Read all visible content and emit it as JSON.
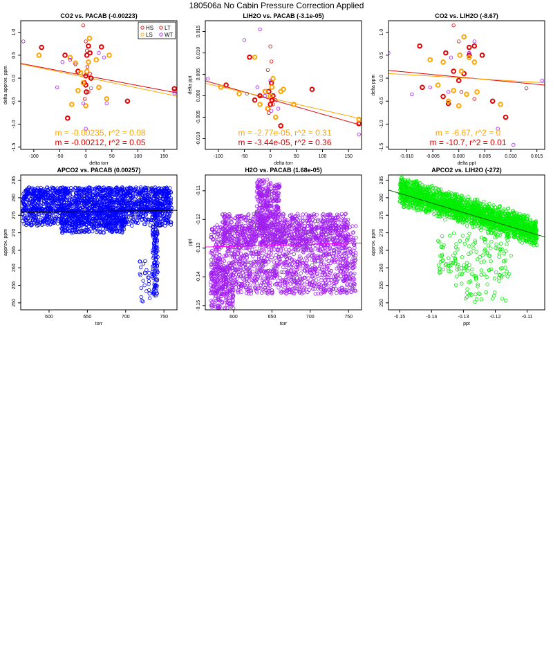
{
  "page": {
    "title": "180506a   No Cabin Pressure Correction Applied"
  },
  "colors": {
    "HS": "#e00000",
    "LT": "#e00000",
    "LS": "#ffa500",
    "WT": "#a020f0",
    "fitLS": "#ffa500",
    "fitHS": "#e00000",
    "blue": "#0000ff",
    "purple": "#a020f0",
    "green": "#00ee00"
  },
  "chart_data": [
    {
      "type": "scatter",
      "title": "CO2 vs. PACAB (-0.00223)",
      "xlabel": "delta torr",
      "ylabel": "delta approx. ppm",
      "xlim": [
        -125,
        175
      ],
      "ylim": [
        -1.55,
        1.25
      ],
      "xticks": [
        -100,
        -50,
        0,
        50,
        100,
        150
      ],
      "yticks": [
        -1.5,
        -1.0,
        -0.5,
        0.0,
        0.5,
        1.0
      ],
      "xtick_labels": [
        "-100",
        "-50",
        "0",
        "50",
        "100",
        "150"
      ],
      "ytick_labels": [
        "-1.5",
        "-1.0",
        "-0.5",
        "0.0",
        "0.5",
        "1.0"
      ],
      "legend": {
        "position": "top-right",
        "entries": [
          "HS",
          "LT",
          "LS",
          "WT"
        ]
      },
      "annotations": [
        {
          "text": "m = -0.00235, r^2 = 0.08",
          "color": "#ffa500"
        },
        {
          "text": "m = -0.00212, r^2 = 0.05",
          "color": "#e00000"
        }
      ],
      "fits": [
        {
          "color": "#e00000",
          "x": [
            -125,
            175
          ],
          "y": [
            0.32,
            -0.32
          ]
        },
        {
          "color": "#ffa500",
          "x": [
            -125,
            175
          ],
          "y": [
            0.31,
            -0.39
          ]
        }
      ],
      "series": [
        {
          "name": "HS",
          "color": "#e00000",
          "thick": true,
          "x": [
            -85,
            -40,
            -35,
            -15,
            0,
            2,
            5,
            8,
            10,
            30,
            80,
            170,
            1,
            0,
            -3
          ],
          "y": [
            0.67,
            0.5,
            -0.87,
            0.15,
            -0.15,
            0.5,
            0.7,
            0.55,
            0.0,
            0.68,
            -0.5,
            -0.23,
            -0.3,
            0.05,
            -0.1
          ]
        },
        {
          "name": "LS",
          "color": "#ffa500",
          "thick": true,
          "x": [
            -90,
            -30,
            -27,
            -20,
            -15,
            -10,
            0,
            5,
            7,
            20,
            25,
            40,
            45,
            -5,
            2
          ],
          "y": [
            0.5,
            0.45,
            -0.57,
            0.33,
            -0.27,
            0.12,
            -0.6,
            0.35,
            0.87,
            0.4,
            -0.2,
            -0.45,
            0.5,
            -0.1,
            0.15
          ]
        },
        {
          "name": "LT",
          "color": "#e00000",
          "thick": false,
          "x": [
            -5,
            0,
            2,
            5,
            8,
            170,
            -2,
            3
          ],
          "y": [
            1.15,
            0.8,
            0.6,
            -0.3,
            0.1,
            -0.28,
            -0.45,
            0.25
          ]
        },
        {
          "name": "WT",
          "color": "#a020f0",
          "thick": false,
          "x": [
            -120,
            -55,
            -45,
            -30,
            -20,
            -5,
            10,
            25,
            35,
            40,
            170,
            0
          ],
          "y": [
            0.8,
            -0.2,
            0.35,
            0.4,
            0.3,
            -0.55,
            -0.22,
            0.55,
            0.45,
            -0.55,
            -0.33,
            -1.1
          ]
        }
      ]
    },
    {
      "type": "scatter",
      "title": "LIH2O vs. PACAB (-3.1e-05)",
      "xlabel": "delta torr",
      "ylabel": "delta ppt",
      "xlim": [
        -125,
        175
      ],
      "ylim": [
        -0.0125,
        0.0175
      ],
      "xticks": [
        -100,
        -50,
        0,
        50,
        100,
        150
      ],
      "yticks": [
        -0.01,
        -0.005,
        0.0,
        0.005,
        0.01,
        0.015
      ],
      "xtick_labels": [
        "-100",
        "-50",
        "0",
        "50",
        "100",
        "150"
      ],
      "ytick_labels": [
        "-0.010",
        "-0.005",
        "0.000",
        "0.005",
        "0.010",
        "0.015"
      ],
      "annotations": [
        {
          "text": "m = -2.77e-05, r^2 = 0.31",
          "color": "#ffa500"
        },
        {
          "text": "m = -3.44e-05, r^2 = 0.36",
          "color": "#e00000"
        }
      ],
      "fits": [
        {
          "color": "#e00000",
          "x": [
            -125,
            175
          ],
          "y": [
            0.0035,
            -0.0069
          ]
        },
        {
          "color": "#ffa500",
          "x": [
            -125,
            175
          ],
          "y": [
            0.0029,
            -0.0054
          ]
        }
      ],
      "series": [
        {
          "name": "HS",
          "color": "#e00000",
          "thick": true,
          "x": [
            -85,
            -40,
            -30,
            -20,
            -10,
            -5,
            0,
            2,
            5,
            20,
            80,
            170,
            -3,
            3
          ],
          "y": [
            0.0025,
            0.009,
            -0.001,
            0.0,
            0.001,
            -0.003,
            -0.002,
            0.003,
            0.0,
            -0.007,
            0.0015,
            -0.0065,
            0.001,
            -0.001
          ]
        },
        {
          "name": "LS",
          "color": "#ffa500",
          "thick": true,
          "x": [
            -95,
            -60,
            -30,
            -20,
            -10,
            0,
            5,
            10,
            20,
            25,
            45,
            170,
            -5,
            3
          ],
          "y": [
            0.002,
            0.0005,
            0.009,
            -0.002,
            0.001,
            0.0,
            0.004,
            -0.005,
            0.001,
            0.0015,
            -0.002,
            -0.0055,
            -0.003,
            0.002
          ]
        },
        {
          "name": "LT",
          "color": "#e00000",
          "thick": false,
          "x": [
            -5,
            0,
            2,
            5,
            10,
            170,
            -3
          ],
          "y": [
            0.006,
            0.0115,
            0.008,
            -0.002,
            -0.001,
            -0.0065,
            -0.004
          ]
        },
        {
          "name": "WT",
          "color": "#a020f0",
          "thick": false,
          "x": [
            -120,
            -50,
            -45,
            -25,
            -20,
            -10,
            0,
            15,
            170,
            2
          ],
          "y": [
            0.004,
            0.013,
            0.0005,
            0.002,
            0.0155,
            0.0,
            0.0035,
            -0.003,
            -0.009,
            -0.0035
          ]
        }
      ]
    },
    {
      "type": "scatter",
      "title": "CO2 vs. LIH2O (-8.67)",
      "xlabel": "delta ppt",
      "ylabel": "delta ppm",
      "xlim": [
        -0.0135,
        0.0165
      ],
      "ylim": [
        -1.55,
        1.25
      ],
      "xticks": [
        -0.01,
        -0.005,
        0.0,
        0.005,
        0.01,
        0.015
      ],
      "yticks": [
        -1.5,
        -1.0,
        -0.5,
        0.0,
        0.5,
        1.0
      ],
      "xtick_labels": [
        "-0.010",
        "-0.005",
        "0.000",
        "0.005",
        "0.010",
        "0.015"
      ],
      "ytick_labels": [
        "-1.5",
        "-1.0",
        "-0.5",
        "0.0",
        "0.5",
        "1.0"
      ],
      "annotations": [
        {
          "text": "m = -6.67, r^2 = 0",
          "color": "#ffa500"
        },
        {
          "text": "m = -10.7, r^2 = 0.01",
          "color": "#e00000"
        }
      ],
      "fits": [
        {
          "color": "#e00000",
          "x": [
            -0.0135,
            0.0165
          ],
          "y": [
            0.17,
            -0.15
          ]
        },
        {
          "color": "#ffa500",
          "x": [
            -0.0135,
            0.0165
          ],
          "y": [
            0.1,
            -0.1
          ]
        }
      ],
      "series": [
        {
          "name": "HS",
          "color": "#e00000",
          "thick": true,
          "x": [
            -0.0075,
            -0.007,
            -0.0025,
            -0.002,
            -0.001,
            0.0,
            0.001,
            0.002,
            0.003,
            0.0045,
            0.0065,
            0.009,
            0.002,
            -0.003
          ],
          "y": [
            0.7,
            -0.2,
            0.55,
            -0.55,
            0.15,
            -0.05,
            0.1,
            0.5,
            0.7,
            0.5,
            -0.5,
            -0.85,
            0.67,
            -0.4
          ]
        },
        {
          "name": "LS",
          "color": "#ffa500",
          "thick": true,
          "x": [
            -0.0055,
            -0.004,
            -0.003,
            -0.002,
            0.0,
            0.0005,
            0.001,
            0.0015,
            0.002,
            0.003,
            0.0035,
            0.008,
            -0.001,
            0.0002
          ],
          "y": [
            0.4,
            -0.15,
            0.35,
            -0.5,
            -0.6,
            0.15,
            0.9,
            -0.35,
            0.45,
            0.35,
            -0.3,
            -0.57,
            -0.27,
            0.5
          ]
        },
        {
          "name": "LT",
          "color": "#e00000",
          "thick": false,
          "x": [
            -0.001,
            0.0,
            0.002,
            0.003,
            0.013,
            0.0005
          ],
          "y": [
            1.15,
            0.8,
            0.55,
            -0.45,
            -0.22,
            -0.3
          ]
        },
        {
          "name": "WT",
          "color": "#a020f0",
          "thick": false,
          "x": [
            -0.0135,
            -0.009,
            -0.0055,
            -0.0015,
            0.002,
            0.003,
            0.0105,
            0.016,
            0.0075,
            -0.002
          ],
          "y": [
            0.55,
            -0.35,
            -0.2,
            0.45,
            0.55,
            0.8,
            -1.45,
            -0.05,
            -1.1,
            -0.3
          ]
        }
      ]
    },
    {
      "type": "scatter",
      "title": "APCO2 vs. PACAB (0.00257)",
      "xlabel": "torr",
      "ylabel": "approx. ppm",
      "xlim": [
        563,
        767
      ],
      "ylim": [
        248,
        286.5
      ],
      "xticks": [
        600,
        650,
        700,
        750
      ],
      "yticks": [
        250,
        255,
        260,
        265,
        270,
        275,
        280,
        285
      ],
      "xtick_labels": [
        "600",
        "650",
        "700",
        "750"
      ],
      "ytick_labels": [
        "250",
        "255",
        "260",
        "265",
        "270",
        "275",
        "280",
        "285"
      ],
      "color": "#0000ff",
      "fits": [
        {
          "color": "#000000",
          "x": [
            563,
            767
          ],
          "y": [
            275.9,
            276.4
          ]
        }
      ],
      "clouds": [
        {
          "x": [
            565,
            760
          ],
          "y": [
            276,
            283
          ],
          "n": 1400
        },
        {
          "x": [
            565,
            760
          ],
          "y": [
            272,
            277
          ],
          "n": 600
        },
        {
          "x": [
            615,
            700
          ],
          "y": [
            270,
            276
          ],
          "n": 350
        },
        {
          "x": [
            735,
            742
          ],
          "y": [
            252,
            276
          ],
          "n": 150
        },
        {
          "x": [
            718,
            732
          ],
          "y": [
            250,
            262
          ],
          "n": 25
        }
      ]
    },
    {
      "type": "scatter",
      "title": "H2O vs. PACAB (1.68e-05)",
      "xlabel": "torr",
      "ylabel": "ppt",
      "xlim": [
        563,
        767
      ],
      "ylim": [
        -0.1515,
        -0.1045
      ],
      "xticks": [
        600,
        650,
        700,
        750
      ],
      "yticks": [
        -0.15,
        -0.14,
        -0.13,
        -0.12,
        -0.11
      ],
      "xtick_labels": [
        "600",
        "650",
        "700",
        "750"
      ],
      "ytick_labels": [
        "-0.15",
        "-0.14",
        "-0.13",
        "-0.12",
        "-0.11"
      ],
      "color": "#a020f0",
      "fits": [
        {
          "color": "#ff00ff",
          "x": [
            563,
            767
          ],
          "y": [
            -0.1296,
            -0.1282
          ]
        }
      ],
      "clouds": [
        {
          "x": [
            570,
            760
          ],
          "y": [
            -0.146,
            -0.122
          ],
          "n": 1500
        },
        {
          "x": [
            585,
            750
          ],
          "y": [
            -0.129,
            -0.118
          ],
          "n": 700
        },
        {
          "x": [
            630,
            660
          ],
          "y": [
            -0.124,
            -0.106
          ],
          "n": 300
        },
        {
          "x": [
            570,
            600
          ],
          "y": [
            -0.151,
            -0.136
          ],
          "n": 200
        }
      ]
    },
    {
      "type": "scatter",
      "title": "APCO2 vs. LIH2O (-272)",
      "xlabel": "ppt",
      "ylabel": "approx. ppm",
      "xlim": [
        -0.1535,
        -0.1045
      ],
      "ylim": [
        248,
        286.5
      ],
      "xticks": [
        -0.15,
        -0.14,
        -0.13,
        -0.12,
        -0.11
      ],
      "yticks": [
        250,
        255,
        260,
        265,
        270,
        275,
        280,
        285
      ],
      "xtick_labels": [
        "-0.15",
        "-0.14",
        "-0.13",
        "-0.12",
        "-0.11"
      ],
      "ytick_labels": [
        "250",
        "255",
        "260",
        "265",
        "270",
        "275",
        "280",
        "285"
      ],
      "color": "#00ee00",
      "fits": [
        {
          "color": "#006400",
          "x": [
            -0.1535,
            -0.1045
          ],
          "y": [
            282.2,
            268.8
          ]
        }
      ],
      "clouds": [
        {
          "band": true,
          "x": [
            -0.15,
            -0.107
          ],
          "y0": 282,
          "slope": -272,
          "spread": 4.5,
          "n": 2200
        },
        {
          "x": [
            -0.138,
            -0.115
          ],
          "y": [
            257,
            270
          ],
          "n": 140
        },
        {
          "x": [
            -0.133,
            -0.115
          ],
          "y": [
            250,
            258
          ],
          "n": 30
        }
      ]
    }
  ]
}
